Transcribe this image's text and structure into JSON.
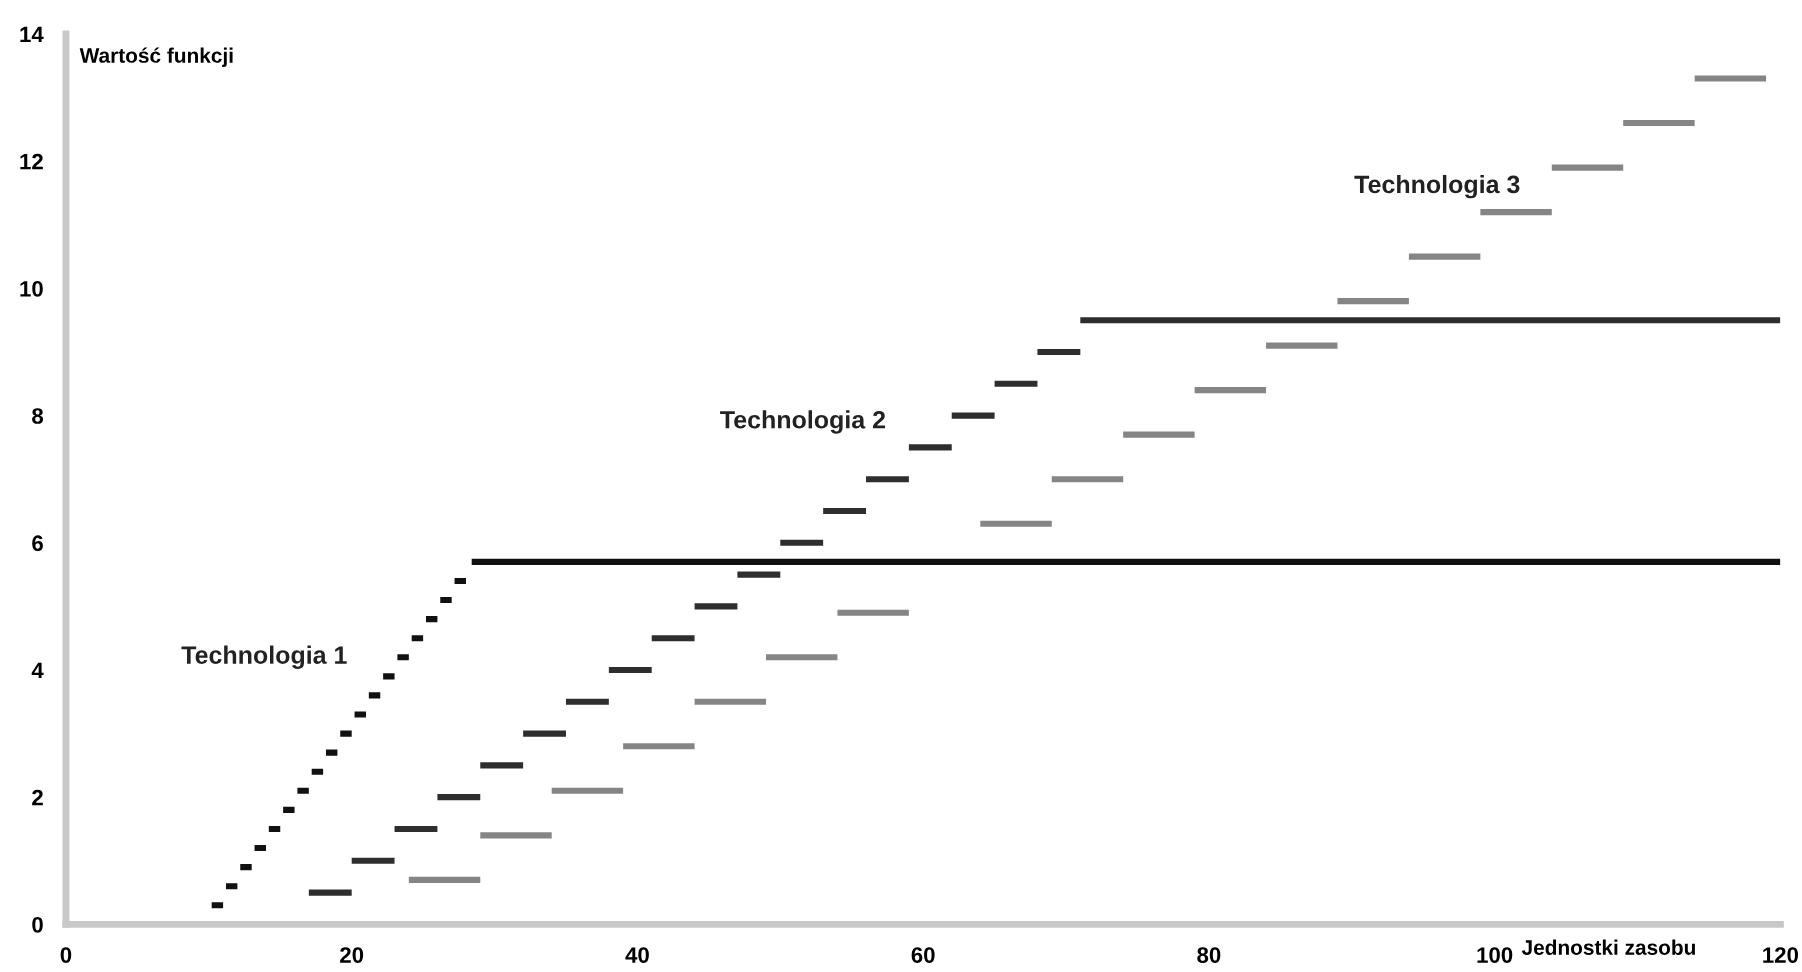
{
  "chart_data": {
    "type": "line",
    "xlabel": "Jednostki zasobu",
    "ylabel": "Wartość funkcji",
    "xlim": [
      0,
      120
    ],
    "ylim": [
      0,
      14
    ],
    "xticks": [
      0,
      20,
      40,
      60,
      80,
      100,
      120
    ],
    "yticks": [
      0,
      2,
      4,
      6,
      8,
      10,
      12,
      14
    ],
    "grid": false,
    "legend": false,
    "marker": "none",
    "line_style": "solid",
    "series": [
      {
        "name": "Technologia 1",
        "color": "#111111",
        "x": [
          10.2,
          11,
          null,
          11.2,
          12,
          null,
          12.2,
          13,
          null,
          13.2,
          14,
          null,
          14.2,
          15,
          null,
          15.2,
          16,
          null,
          16.2,
          17,
          null,
          17.2,
          18,
          null,
          18.2,
          19,
          null,
          19.2,
          20,
          null,
          20.2,
          21,
          null,
          21.2,
          22,
          null,
          22.2,
          23,
          null,
          23.2,
          24,
          null,
          24.2,
          25,
          null,
          25.2,
          26,
          null,
          26.2,
          27,
          null,
          27.2,
          28,
          null,
          28.4,
          120
        ],
        "values": [
          0.3,
          0.3,
          null,
          0.6,
          0.6,
          null,
          0.9,
          0.9,
          null,
          1.2,
          1.2,
          null,
          1.5,
          1.5,
          null,
          1.8,
          1.8,
          null,
          2.1,
          2.1,
          null,
          2.4,
          2.4,
          null,
          2.7,
          2.7,
          null,
          3.0,
          3.0,
          null,
          3.3,
          3.3,
          null,
          3.6,
          3.6,
          null,
          3.9,
          3.9,
          null,
          4.2,
          4.2,
          null,
          4.5,
          4.5,
          null,
          4.8,
          4.8,
          null,
          5.1,
          5.1,
          null,
          5.4,
          5.4,
          null,
          5.7,
          5.7
        ]
      },
      {
        "name": "Technologia 2",
        "color": "#2e2e2e",
        "x": [
          17,
          20,
          null,
          20,
          23,
          null,
          23,
          26,
          null,
          26,
          29,
          null,
          29,
          32,
          null,
          32,
          35,
          null,
          35,
          38,
          null,
          38,
          41,
          null,
          41,
          44,
          null,
          44,
          47,
          null,
          47,
          50,
          null,
          50,
          53,
          null,
          53,
          56,
          null,
          56,
          59,
          null,
          59,
          62,
          null,
          62,
          65,
          null,
          65,
          68,
          null,
          68,
          71,
          null,
          71,
          120
        ],
        "values": [
          0.5,
          0.5,
          null,
          1,
          1,
          null,
          1.5,
          1.5,
          null,
          2,
          2,
          null,
          2.5,
          2.5,
          null,
          3,
          3,
          null,
          3.5,
          3.5,
          null,
          4,
          4,
          null,
          4.5,
          4.5,
          null,
          5,
          5,
          null,
          5.5,
          5.5,
          null,
          6,
          6,
          null,
          6.5,
          6.5,
          null,
          7,
          7,
          null,
          7.5,
          7.5,
          null,
          8,
          8,
          null,
          8.5,
          8.5,
          null,
          9,
          9,
          null,
          9.5,
          9.5
        ]
      },
      {
        "name": "Technologia 3",
        "color": "#858585",
        "x": [
          24,
          29,
          null,
          29,
          34,
          null,
          34,
          39,
          null,
          39,
          44,
          null,
          44,
          49,
          null,
          49,
          54,
          null,
          54,
          59,
          null,
          null,
          null,
          null,
          64,
          69,
          null,
          69,
          74,
          null,
          74,
          79,
          null,
          79,
          84,
          null,
          84,
          89,
          null,
          89,
          94,
          null,
          94,
          99,
          null,
          99,
          104,
          null,
          104,
          109,
          null,
          109,
          114,
          null,
          114,
          119
        ],
        "values": [
          0.7,
          0.7,
          null,
          1.4,
          1.4,
          null,
          2.1,
          2.1,
          null,
          2.8,
          2.8,
          null,
          3.5,
          3.5,
          null,
          4.2,
          4.2,
          null,
          4.9,
          4.9,
          null,
          null,
          null,
          null,
          6.3,
          6.3,
          null,
          7,
          7,
          null,
          7.7,
          7.7,
          null,
          8.4,
          8.4,
          null,
          9.1,
          9.1,
          null,
          9.8,
          9.8,
          null,
          10.5,
          10.5,
          null,
          11.2,
          11.2,
          null,
          11.9,
          11.9,
          null,
          12.6,
          12.6,
          null,
          13.3,
          13.3
        ]
      }
    ]
  }
}
